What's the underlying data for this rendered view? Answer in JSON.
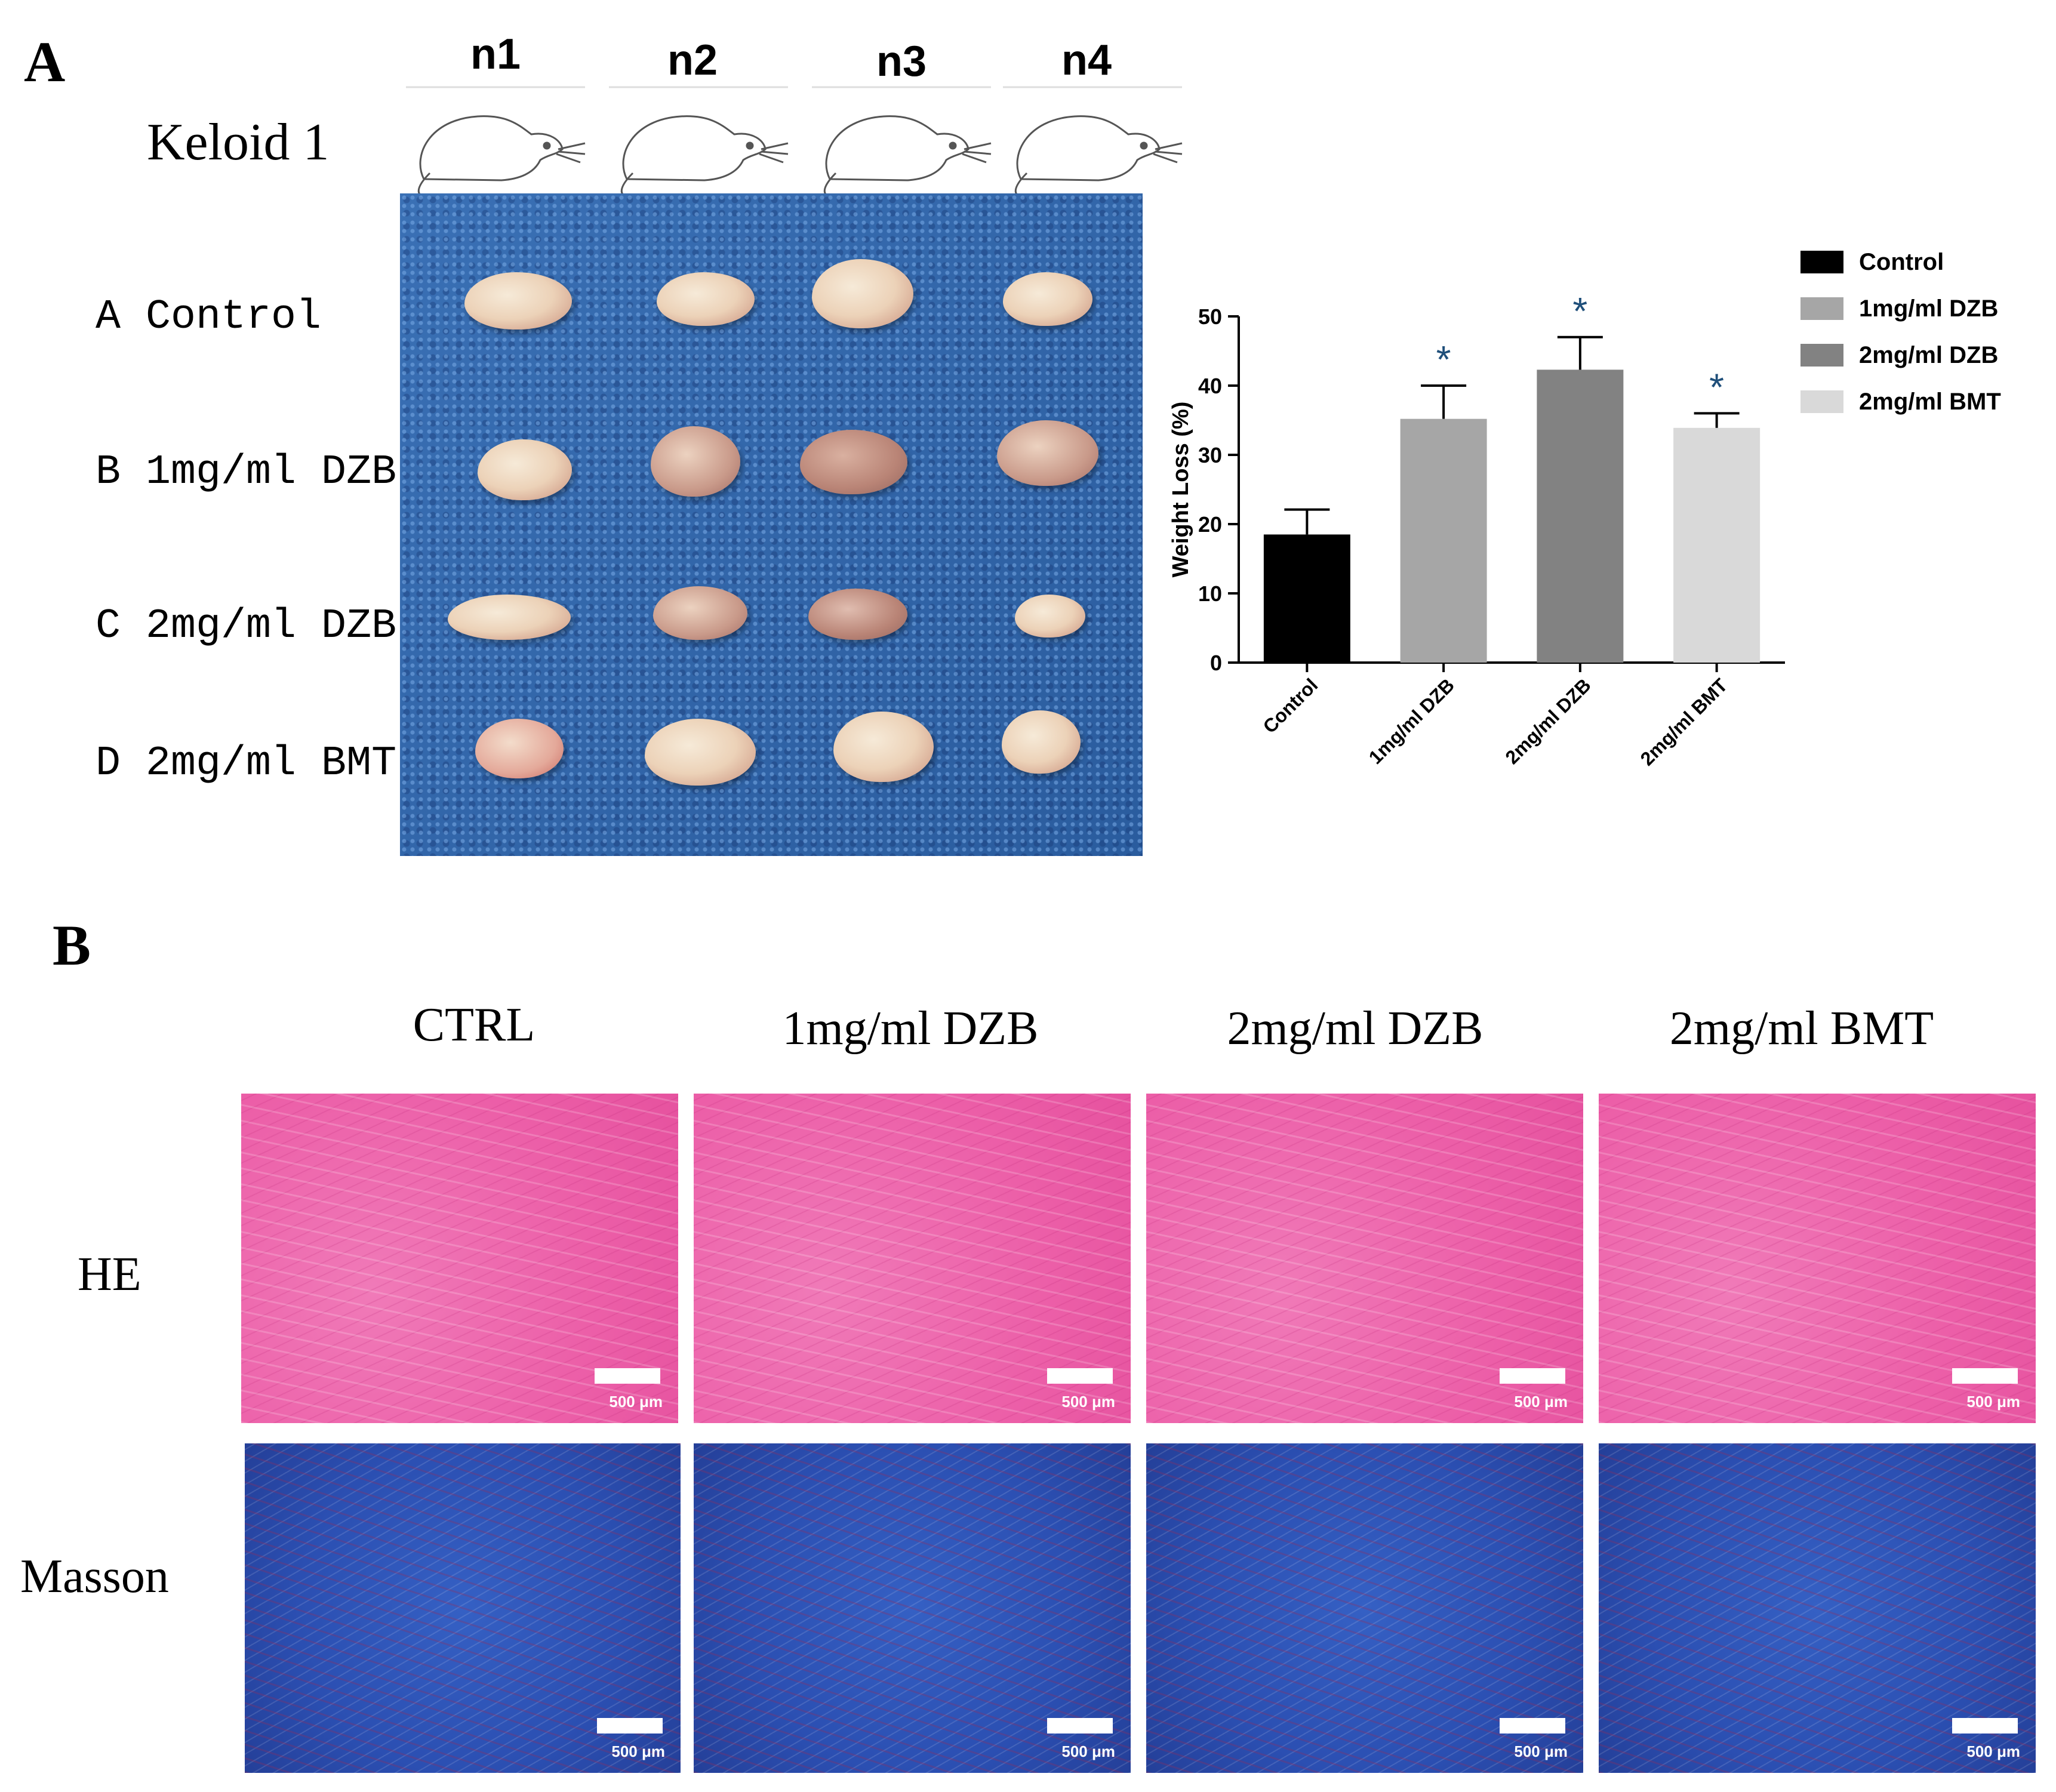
{
  "panel_a": {
    "letter": "A",
    "keloid_label": "Keloid 1",
    "columns": [
      "n1",
      "n2",
      "n3",
      "n4"
    ],
    "rows": [
      "A Control",
      "B 1mg/ml DZB",
      "C 2mg/ml DZB",
      "D 2mg/ml BMT"
    ]
  },
  "chart_data": {
    "type": "bar",
    "categories": [
      "Control",
      "1mg/ml DZB",
      "2mg/ml DZB",
      "2mg/ml BMT"
    ],
    "values": [
      18.5,
      35.2,
      42.3,
      33.9
    ],
    "errors": [
      3.6,
      4.8,
      4.7,
      2.1
    ],
    "significance": [
      "",
      "*",
      "*",
      "*"
    ],
    "colors": [
      "#000000",
      "#a6a6a6",
      "#828282",
      "#d9d9d9"
    ],
    "ylabel": "Weight Loss (%)",
    "ylim": [
      0,
      50
    ],
    "yticks": [
      "0",
      "10",
      "20",
      "30",
      "40",
      "50"
    ],
    "legend": [
      "Control",
      "1mg/ml DZB",
      "2mg/ml DZB",
      "2mg/ml BMT"
    ]
  },
  "panel_b": {
    "letter": "B",
    "columns": [
      "CTRL",
      "1mg/ml DZB",
      "2mg/ml DZB",
      "2mg/ml BMT"
    ],
    "rows": [
      "HE",
      "Masson"
    ],
    "scale_label": "500 μm"
  }
}
